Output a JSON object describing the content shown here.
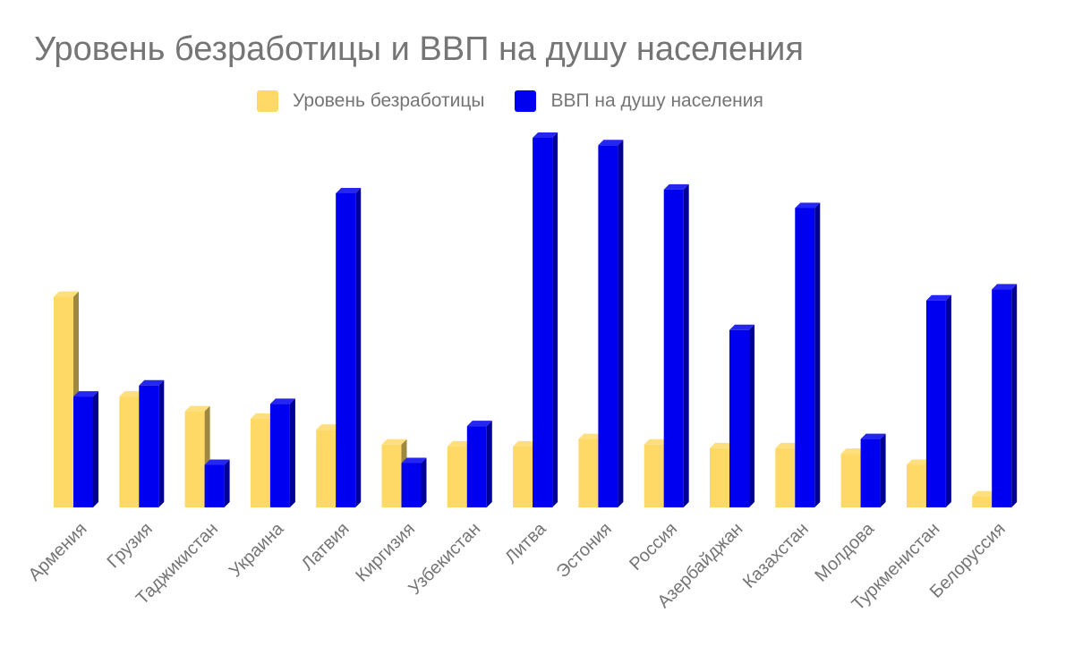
{
  "chart_data": {
    "type": "bar",
    "title": "Уровень безработицы и ВВП на душу населения",
    "xlabel": "",
    "ylabel": "",
    "grid": false,
    "legend_position": "top",
    "bar_style": "3d",
    "ylim": [
      0,
      100
    ],
    "categories": [
      "Армения",
      "Грузия",
      "Таджикистан",
      "Украина",
      "Латвия",
      "Киргизия",
      "Узбекистан",
      "Литва",
      "Эстония",
      "Россия",
      "Азербайджан",
      "Казахстан",
      "Молдова",
      "Туркменистан",
      "Белоруссия"
    ],
    "series": [
      {
        "name": "Уровень безработицы",
        "color": "#FFD966",
        "values": [
          57,
          30,
          26,
          24,
          21,
          17,
          16.5,
          16.5,
          18.5,
          17,
          16,
          16,
          14.5,
          11.5,
          3
        ]
      },
      {
        "name": "ВВП на душу населения",
        "color": "#0000F0",
        "values": [
          30,
          33,
          11.5,
          28,
          85,
          12,
          22,
          100,
          98,
          86,
          48,
          81,
          18.5,
          56,
          59
        ]
      }
    ]
  }
}
